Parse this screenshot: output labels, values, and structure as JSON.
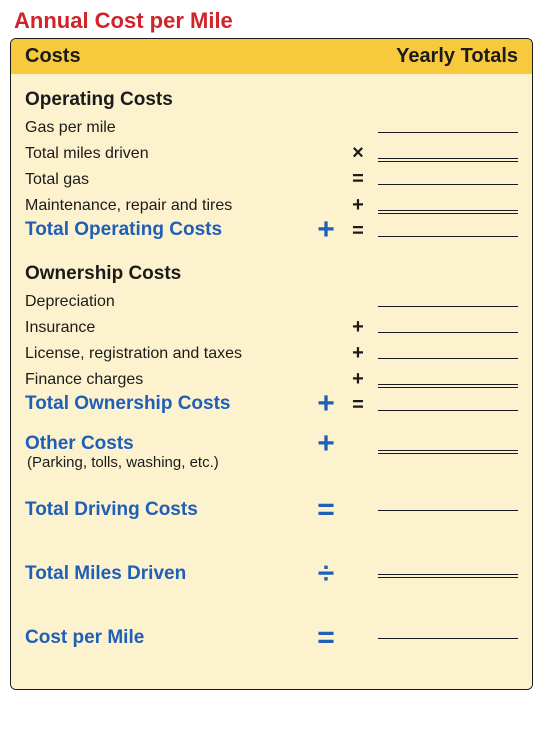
{
  "colors": {
    "title": "#d1242a",
    "header_bg": "#f7ca3e",
    "header_text": "#1b1b1b",
    "card_bg": "#fdf2ce",
    "card_border": "#1b1b1b",
    "text": "#1b1b1b",
    "accent": "#1e5fb8",
    "line": "#1b1b1b"
  },
  "title": "Annual Cost per Mile",
  "header": {
    "left": "Costs",
    "right": "Yearly Totals"
  },
  "sections": {
    "operating": {
      "title": "Operating Costs",
      "rows": [
        {
          "label": "Gas per mile",
          "opA": "",
          "opB": "",
          "line": "single"
        },
        {
          "label": "Total miles driven",
          "opA": "",
          "opB": "×",
          "line": "double"
        },
        {
          "label": "Total gas",
          "opA": "",
          "opB": "=",
          "line": "single"
        },
        {
          "label": "Maintenance, repair and tires",
          "opA": "",
          "opB": "+",
          "line": "double"
        }
      ],
      "total": {
        "label": "Total Operating Costs",
        "opA": "+",
        "opB": "=",
        "line": "single"
      }
    },
    "ownership": {
      "title": "Ownership Costs",
      "rows": [
        {
          "label": "Depreciation",
          "opA": "",
          "opB": "",
          "line": "single"
        },
        {
          "label": "Insurance",
          "opA": "",
          "opB": "+",
          "line": "single"
        },
        {
          "label": "License, registration and taxes",
          "opA": "",
          "opB": "+",
          "line": "single"
        },
        {
          "label": "Finance charges",
          "opA": "",
          "opB": "+",
          "line": "double"
        }
      ],
      "total": {
        "label": "Total Ownership Costs",
        "opA": "+",
        "opB": "=",
        "line": "single"
      }
    },
    "other": {
      "label": "Other Costs",
      "note": "(Parking, tolls, washing, etc.)",
      "opA": "+",
      "line": "double"
    },
    "totals": [
      {
        "label": "Total Driving Costs",
        "opA": "=",
        "line": "single"
      },
      {
        "label": "Total Miles Driven",
        "opA": "÷",
        "line": "double"
      },
      {
        "label": "Cost per Mile",
        "opA": "=",
        "line": "single"
      }
    ]
  }
}
